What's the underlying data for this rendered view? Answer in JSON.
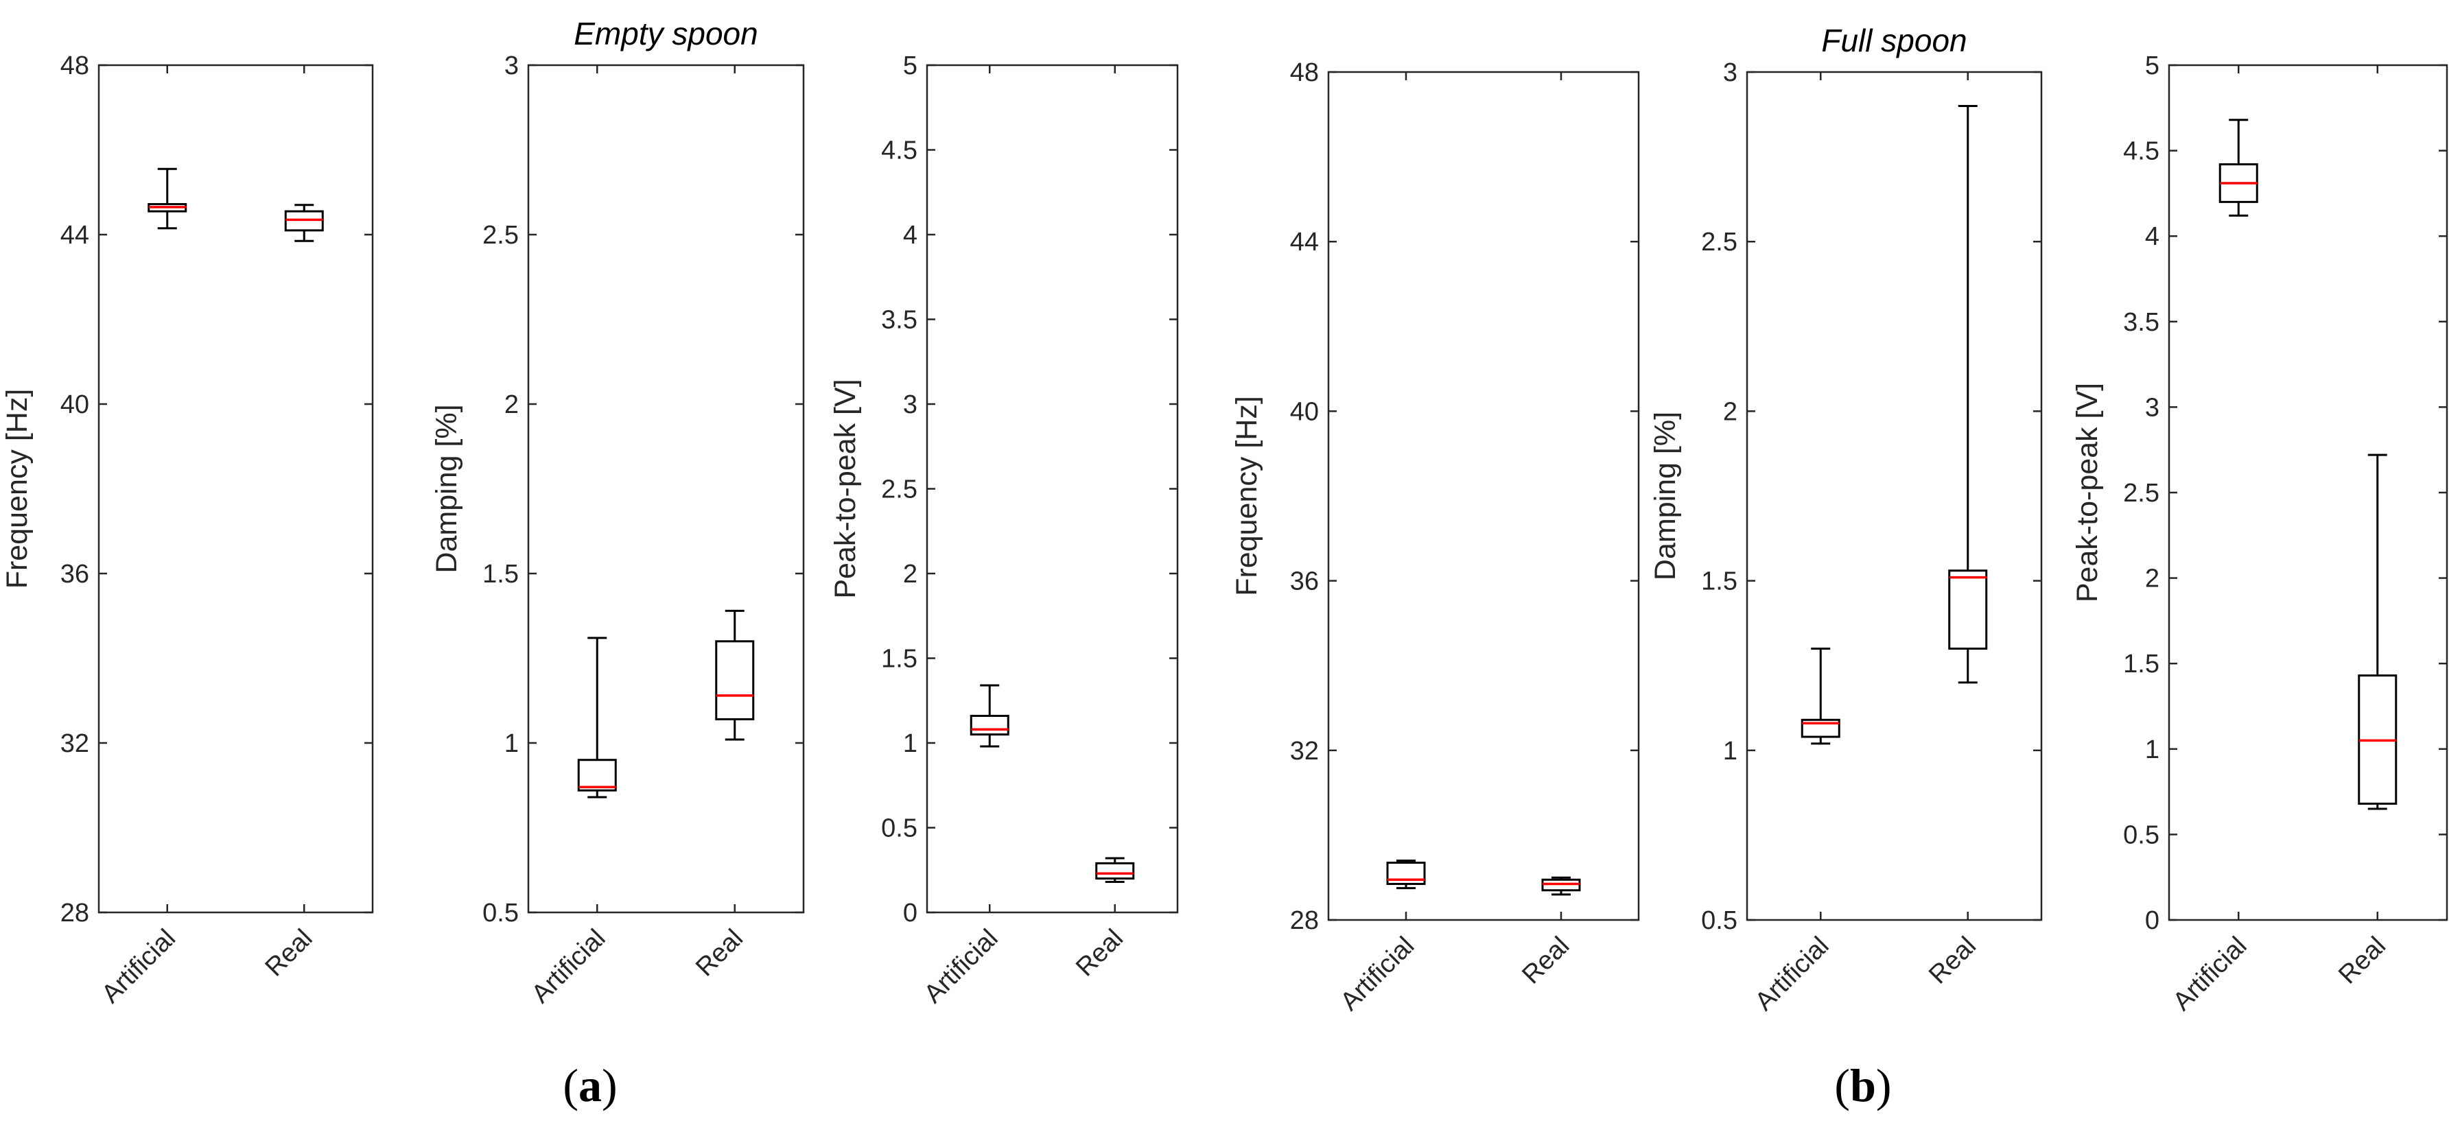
{
  "colors": {
    "box": "#000000",
    "median": "#ff0000",
    "axis": "#262626"
  },
  "chart_data": [
    {
      "type": "boxplot",
      "group": "a",
      "ylabel": "Frequency [Hz]",
      "ylim": [
        28,
        48
      ],
      "yticks": [
        28,
        32,
        36,
        40,
        44,
        48
      ],
      "categories": [
        "Artificial",
        "Real"
      ],
      "boxes": [
        {
          "min": 44.15,
          "q1": 44.55,
          "median": 44.65,
          "q3": 44.72,
          "max": 45.55
        },
        {
          "min": 43.85,
          "q1": 44.1,
          "median": 44.35,
          "q3": 44.55,
          "max": 44.7
        }
      ]
    },
    {
      "type": "boxplot",
      "group": "a",
      "title": "Empty spoon",
      "ylabel": "Damping [%]",
      "ylim": [
        0.5,
        3
      ],
      "yticks": [
        0.5,
        1,
        1.5,
        2,
        2.5,
        3
      ],
      "categories": [
        "Artificial",
        "Real"
      ],
      "boxes": [
        {
          "min": 0.84,
          "q1": 0.86,
          "median": 0.87,
          "q3": 0.95,
          "max": 1.31
        },
        {
          "min": 1.01,
          "q1": 1.07,
          "median": 1.14,
          "q3": 1.3,
          "max": 1.39
        }
      ]
    },
    {
      "type": "boxplot",
      "group": "a",
      "ylabel": "Peak-to-peak [V]",
      "ylim": [
        0,
        5
      ],
      "yticks": [
        0,
        0.5,
        1,
        1.5,
        2,
        2.5,
        3,
        3.5,
        4,
        4.5,
        5
      ],
      "categories": [
        "Artificial",
        "Real"
      ],
      "boxes": [
        {
          "min": 0.98,
          "q1": 1.05,
          "median": 1.08,
          "q3": 1.16,
          "max": 1.34
        },
        {
          "min": 0.18,
          "q1": 0.2,
          "median": 0.23,
          "q3": 0.29,
          "max": 0.32
        }
      ]
    },
    {
      "type": "boxplot",
      "group": "b",
      "ylabel": "Frequency [Hz]",
      "ylim": [
        28,
        48
      ],
      "yticks": [
        28,
        32,
        36,
        40,
        44,
        48
      ],
      "categories": [
        "Artificial",
        "Real"
      ],
      "boxes": [
        {
          "min": 28.75,
          "q1": 28.85,
          "median": 28.95,
          "q3": 29.35,
          "max": 29.4
        },
        {
          "min": 28.6,
          "q1": 28.7,
          "median": 28.85,
          "q3": 28.95,
          "max": 29.0
        }
      ]
    },
    {
      "type": "boxplot",
      "group": "b",
      "title": "Full spoon",
      "ylabel": "Damping [%]",
      "ylim": [
        0.5,
        3
      ],
      "yticks": [
        0.5,
        1,
        1.5,
        2,
        2.5,
        3
      ],
      "categories": [
        "Artificial",
        "Real"
      ],
      "boxes": [
        {
          "min": 1.02,
          "q1": 1.04,
          "median": 1.08,
          "q3": 1.09,
          "max": 1.3
        },
        {
          "min": 1.2,
          "q1": 1.3,
          "median": 1.51,
          "q3": 1.53,
          "max": 2.9
        }
      ]
    },
    {
      "type": "boxplot",
      "group": "b",
      "ylabel": "Peak-to-peak [V]",
      "ylim": [
        0,
        5
      ],
      "yticks": [
        0,
        0.5,
        1,
        1.5,
        2,
        2.5,
        3,
        3.5,
        4,
        4.5,
        5
      ],
      "categories": [
        "Artificial",
        "Real"
      ],
      "boxes": [
        {
          "min": 4.12,
          "q1": 4.2,
          "median": 4.31,
          "q3": 4.42,
          "max": 4.68
        },
        {
          "min": 0.65,
          "q1": 0.68,
          "median": 1.05,
          "q3": 1.43,
          "max": 2.72
        }
      ]
    }
  ],
  "panel_labels": {
    "a": {
      "open": "(",
      "letter": "a",
      "close": ")"
    },
    "b": {
      "open": "(",
      "letter": "b",
      "close": ")"
    }
  }
}
